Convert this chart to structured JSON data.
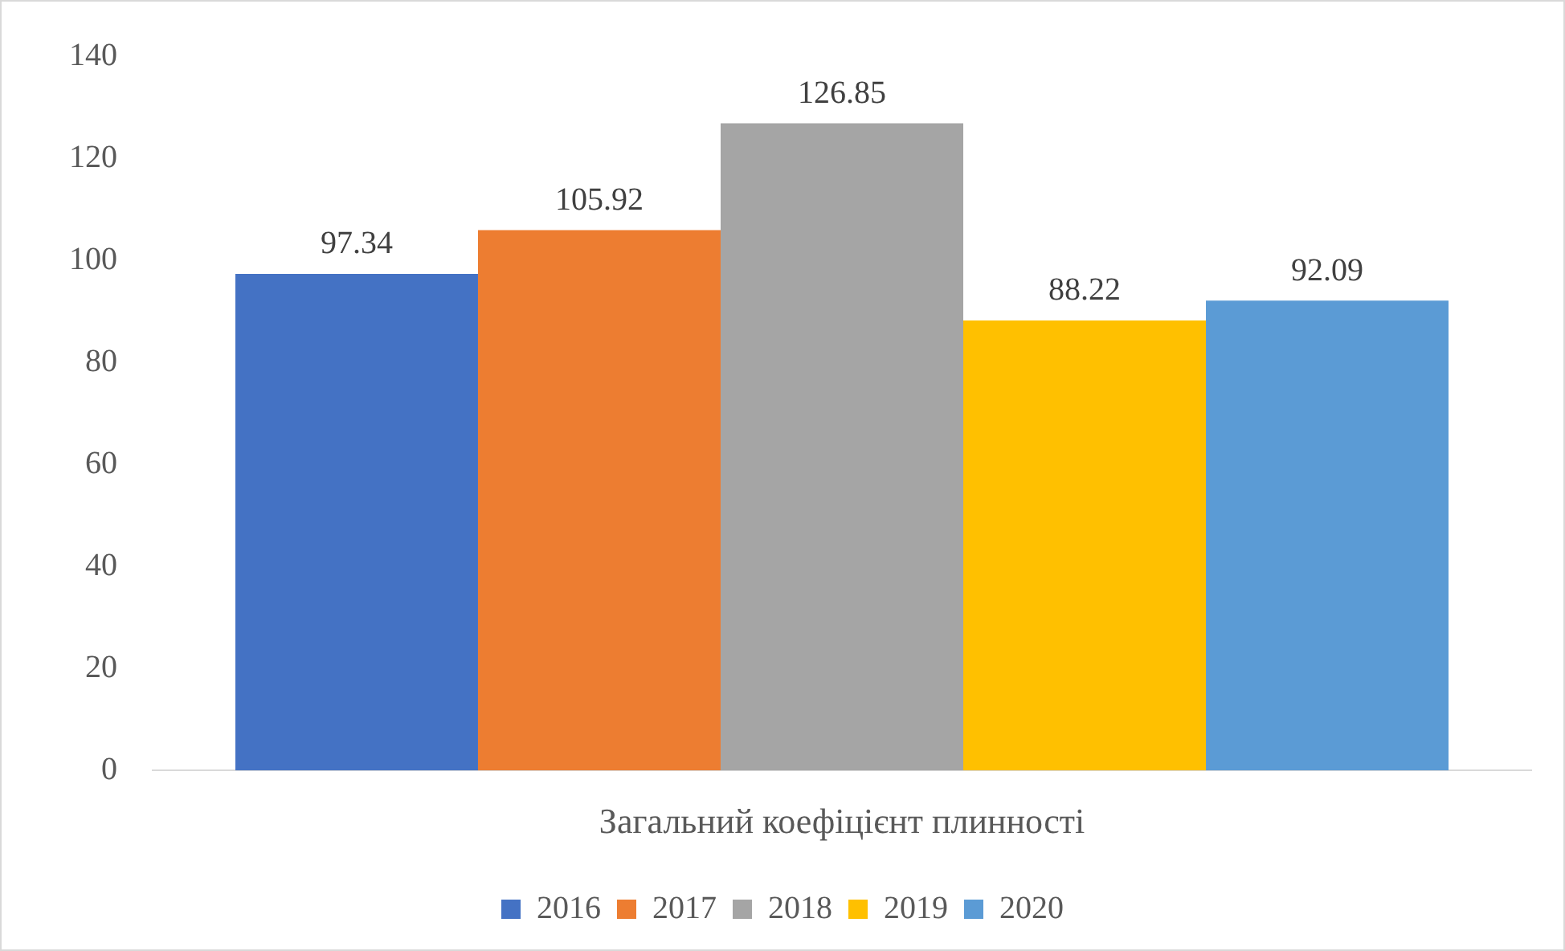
{
  "chart_data": {
    "type": "bar",
    "categories": [
      "Загальний коефіцієнт плинності"
    ],
    "series": [
      {
        "name": "2016",
        "color": "#4472c4",
        "values": [
          97.34
        ]
      },
      {
        "name": "2017",
        "color": "#ed7d31",
        "values": [
          105.92
        ]
      },
      {
        "name": "2018",
        "color": "#a5a5a5",
        "values": [
          126.85
        ]
      },
      {
        "name": "2019",
        "color": "#ffc000",
        "values": [
          88.22
        ]
      },
      {
        "name": "2020",
        "color": "#5b9bd5",
        "values": [
          92.09
        ]
      }
    ],
    "ylim": [
      0,
      140
    ],
    "yticks": [
      0,
      20,
      40,
      60,
      80,
      100,
      120,
      140
    ],
    "grid": false,
    "legend": "bottom",
    "data_labels": true
  }
}
